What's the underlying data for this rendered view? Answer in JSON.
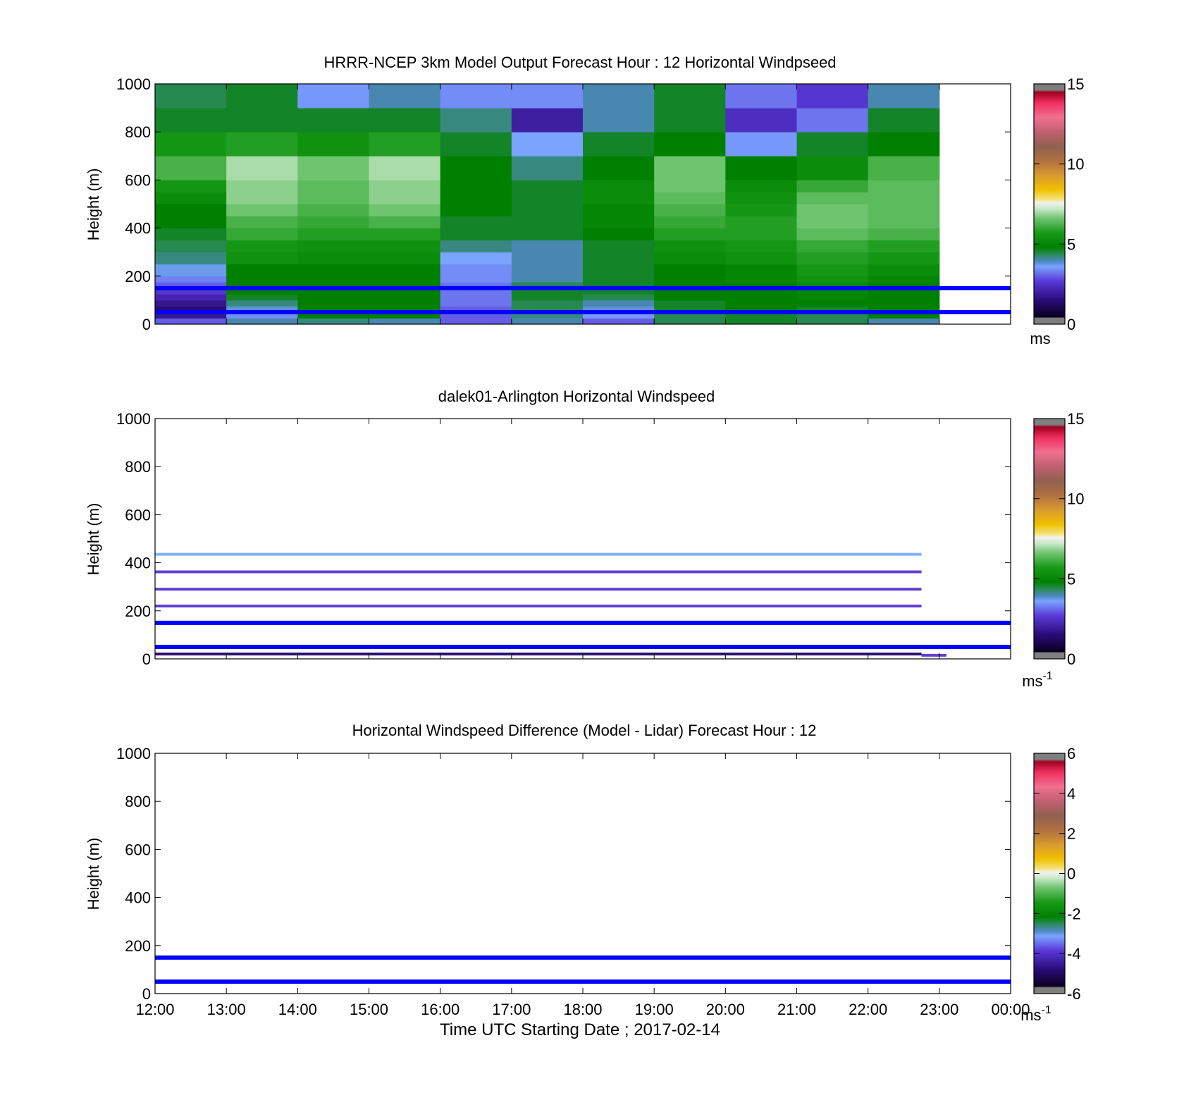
{
  "figure": {
    "xlabel": "Time UTC  Starting Date ; 2017-02-14",
    "x_tick_labels": [
      "12:00",
      "13:00",
      "14:00",
      "15:00",
      "16:00",
      "17:00",
      "18:00",
      "19:00",
      "20:00",
      "21:00",
      "22:00",
      "23:00",
      "00:00"
    ]
  },
  "chart_data": [
    {
      "type": "heatmap",
      "title": "HRRR-NCEP 3km Model Output   Forecast Hour : 12 Horizontal Windpseed",
      "ylabel": "Height (m)",
      "xlabel": "",
      "ylim": [
        0,
        1000
      ],
      "xlim_hours": [
        12,
        24
      ],
      "y_ticks": [
        0,
        200,
        400,
        600,
        800,
        1000
      ],
      "colorbar": {
        "range": [
          0,
          15
        ],
        "ticks": [
          0,
          5,
          10,
          15
        ],
        "unit": "ms"
      },
      "row_edges": [
        0,
        25,
        50,
        75,
        100,
        125,
        150,
        175,
        200,
        250,
        300,
        350,
        400,
        450,
        500,
        550,
        600,
        700,
        800,
        900,
        1000
      ],
      "hours": [
        12,
        13,
        14,
        15,
        16,
        17,
        18,
        19,
        20,
        21,
        22
      ],
      "values": [
        [
          3.0,
          4.0,
          4.2,
          4.0,
          3.0,
          4.0,
          3.0,
          4.4,
          4.6,
          4.4,
          4.0
        ],
        [
          1.8,
          3.4,
          4.8,
          4.8,
          3.0,
          4.2,
          3.5,
          4.4,
          4.6,
          4.4,
          4.8
        ],
        [
          1.5,
          3.8,
          4.8,
          4.8,
          3.0,
          4.4,
          3.8,
          4.6,
          4.8,
          4.6,
          4.8
        ],
        [
          1.8,
          4.2,
          4.8,
          4.8,
          3.2,
          4.4,
          4.0,
          4.6,
          4.8,
          4.8,
          4.8
        ],
        [
          2.2,
          4.6,
          4.8,
          4.8,
          3.2,
          4.6,
          4.4,
          4.8,
          4.8,
          5.0,
          4.8
        ],
        [
          2.6,
          4.8,
          4.8,
          4.8,
          3.2,
          4.6,
          4.6,
          4.8,
          4.8,
          5.0,
          4.8
        ],
        [
          3.0,
          4.8,
          4.8,
          4.8,
          3.2,
          4.4,
          4.6,
          4.8,
          4.8,
          5.2,
          4.8
        ],
        [
          3.3,
          4.8,
          4.8,
          4.8,
          3.4,
          4.0,
          4.6,
          4.8,
          5.0,
          5.4,
          5.0
        ],
        [
          3.7,
          4.8,
          4.8,
          4.8,
          3.4,
          4.0,
          4.6,
          4.8,
          5.0,
          5.6,
          5.2
        ],
        [
          4.2,
          5.4,
          5.2,
          5.2,
          3.6,
          4.0,
          4.6,
          5.2,
          5.4,
          5.8,
          5.6
        ],
        [
          4.4,
          5.6,
          5.4,
          5.4,
          4.2,
          4.0,
          4.6,
          5.4,
          5.6,
          6.0,
          5.8
        ],
        [
          4.6,
          6.0,
          5.8,
          5.8,
          4.6,
          4.6,
          4.8,
          5.8,
          5.8,
          6.4,
          6.2
        ],
        [
          4.8,
          6.2,
          6.0,
          6.2,
          4.6,
          4.6,
          5.0,
          6.0,
          5.8,
          6.6,
          6.4
        ],
        [
          4.8,
          6.6,
          6.2,
          6.6,
          4.8,
          4.6,
          5.0,
          6.2,
          5.6,
          6.6,
          6.4
        ],
        [
          5.2,
          6.8,
          6.4,
          6.8,
          4.8,
          4.6,
          5.2,
          6.4,
          5.4,
          6.4,
          6.4
        ],
        [
          5.6,
          6.8,
          6.4,
          6.8,
          4.8,
          4.6,
          5.2,
          6.6,
          5.2,
          6.0,
          6.4
        ],
        [
          6.2,
          7.0,
          6.6,
          7.0,
          4.8,
          4.2,
          4.8,
          6.6,
          4.8,
          5.2,
          6.2
        ],
        [
          5.6,
          5.8,
          5.4,
          5.8,
          4.6,
          3.6,
          4.6,
          4.8,
          3.5,
          4.6,
          4.8
        ],
        [
          4.6,
          4.6,
          4.6,
          4.6,
          4.2,
          2.0,
          4.0,
          4.6,
          2.4,
          3.2,
          4.6
        ],
        [
          4.4,
          4.6,
          3.5,
          4.0,
          3.4,
          3.4,
          4.0,
          4.6,
          3.2,
          2.6,
          4.0
        ]
      ],
      "hlines": [
        {
          "y": 150,
          "color": "#0000ff"
        },
        {
          "y": 50,
          "color": "#0000ff"
        }
      ]
    },
    {
      "type": "heatmap",
      "title": "dalek01-Arlington  Horizontal Windspeed",
      "ylabel": "Height (m)",
      "xlabel": "",
      "ylim": [
        0,
        1000
      ],
      "xlim_hours": [
        12,
        24
      ],
      "y_ticks": [
        0,
        200,
        400,
        600,
        800,
        1000
      ],
      "colorbar": {
        "range": [
          0,
          15
        ],
        "ticks": [
          0,
          5,
          10,
          15
        ],
        "unit": "ms",
        "unit_exp": "-1"
      },
      "segments": [
        {
          "y": 435,
          "x_start": 12.0,
          "x_end": 22.75,
          "color": "#80b0ff"
        },
        {
          "y": 362,
          "x_start": 12.0,
          "x_end": 22.75,
          "color": "#6040d0"
        },
        {
          "y": 290,
          "x_start": 12.0,
          "x_end": 22.75,
          "color": "#6040d0"
        },
        {
          "y": 220,
          "x_start": 12.0,
          "x_end": 22.75,
          "color": "#6040d0"
        },
        {
          "y": 20,
          "x_start": 12.0,
          "x_end": 22.75,
          "color": "#2a1070"
        },
        {
          "y": 15,
          "x_start": 22.75,
          "x_end": 23.1,
          "color": "#6040d0"
        }
      ],
      "hlines": [
        {
          "y": 150,
          "color": "#0000ff"
        },
        {
          "y": 50,
          "color": "#0000ff"
        }
      ]
    },
    {
      "type": "heatmap",
      "title": "Horizontal Windspeed Difference (Model - Lidar) Forecast Hour : 12",
      "ylabel": "Height (m)",
      "xlabel": "Time UTC  Starting Date ; 2017-02-14",
      "ylim": [
        0,
        1000
      ],
      "xlim_hours": [
        12,
        24
      ],
      "y_ticks": [
        0,
        200,
        400,
        600,
        800,
        1000
      ],
      "colorbar": {
        "range": [
          -6,
          6
        ],
        "ticks": [
          -6,
          -4,
          -2,
          0,
          2,
          4,
          6
        ],
        "unit": "ms",
        "unit_exp": "-1"
      },
      "hlines": [
        {
          "y": 150,
          "color": "#0000ff"
        },
        {
          "y": 50,
          "color": "#0000ff"
        }
      ]
    }
  ],
  "colormap_stops": [
    [
      0.0,
      "#7f7f7f"
    ],
    [
      0.025,
      "#7f7f7f"
    ],
    [
      0.03,
      "#08001e"
    ],
    [
      0.1,
      "#2a0b78"
    ],
    [
      0.18,
      "#5a3ad8"
    ],
    [
      0.24,
      "#7aa4ff"
    ],
    [
      0.26,
      "#5088c8"
    ],
    [
      0.29,
      "#2a8a5a"
    ],
    [
      0.32,
      "#008000"
    ],
    [
      0.38,
      "#189a18"
    ],
    [
      0.44,
      "#6fc46f"
    ],
    [
      0.48,
      "#c8e8c8"
    ],
    [
      0.505,
      "#f2f2f2"
    ],
    [
      0.52,
      "#f5e27a"
    ],
    [
      0.56,
      "#f0c000"
    ],
    [
      0.62,
      "#d89a30"
    ],
    [
      0.68,
      "#b07040"
    ],
    [
      0.74,
      "#906050"
    ],
    [
      0.8,
      "#c06070"
    ],
    [
      0.86,
      "#f07090"
    ],
    [
      0.92,
      "#f03060"
    ],
    [
      0.965,
      "#a00020"
    ],
    [
      0.975,
      "#7f7f7f"
    ],
    [
      1.0,
      "#7f7f7f"
    ]
  ]
}
